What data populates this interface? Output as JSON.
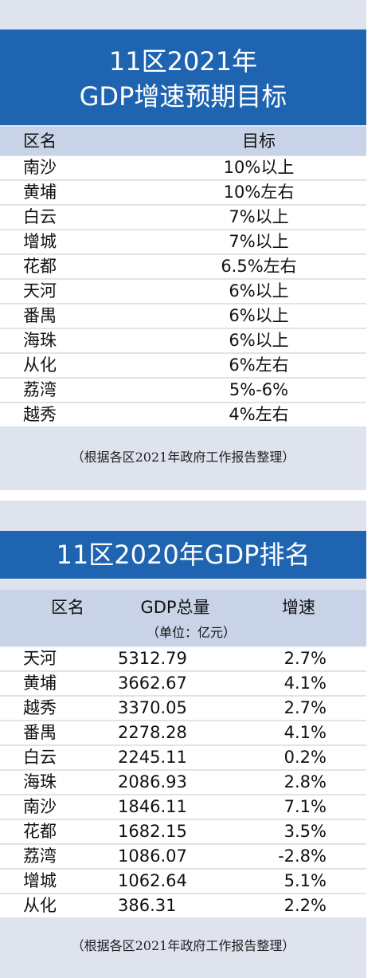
{
  "table1": {
    "title_line1": "11区2021年",
    "title_line2": "GDP增速预期目标",
    "header": {
      "district": "区名",
      "target": "目标"
    },
    "rows": [
      {
        "district": "南沙",
        "target": "10%以上"
      },
      {
        "district": "黄埔",
        "target": "10%左右"
      },
      {
        "district": "白云",
        "target": "7%以上"
      },
      {
        "district": "增城",
        "target": "7%以上"
      },
      {
        "district": "花都",
        "target": "6.5%左右"
      },
      {
        "district": "天河",
        "target": "6%以上"
      },
      {
        "district": "番禺",
        "target": "6%以上"
      },
      {
        "district": "海珠",
        "target": "6%以上"
      },
      {
        "district": "从化",
        "target": "6%左右"
      },
      {
        "district": "荔湾",
        "target": "5%-6%"
      },
      {
        "district": "越秀",
        "target": "4%左右"
      }
    ],
    "note": "（根据各区2021年政府工作报告整理）"
  },
  "table2": {
    "title": "11区2020年GDP排名",
    "header": {
      "district": "区名",
      "gdp": "GDP总量",
      "unit": "（单位：亿元）",
      "growth": "增速"
    },
    "rows": [
      {
        "district": "天河",
        "gdp": "5312.79",
        "growth": "2.7%"
      },
      {
        "district": "黄埔",
        "gdp": "3662.67",
        "growth": "4.1%"
      },
      {
        "district": "越秀",
        "gdp": "3370.05",
        "growth": "2.7%"
      },
      {
        "district": "番禺",
        "gdp": "2278.28",
        "growth": "4.1%"
      },
      {
        "district": "白云",
        "gdp": "2245.11",
        "growth": "0.2%"
      },
      {
        "district": "海珠",
        "gdp": "2086.93",
        "growth": "2.8%"
      },
      {
        "district": "南沙",
        "gdp": "1846.11",
        "growth": "7.1%"
      },
      {
        "district": "花都",
        "gdp": "1682.15",
        "growth": "3.5%"
      },
      {
        "district": "荔湾",
        "gdp": "1086.07",
        "growth": "-2.8%"
      },
      {
        "district": "增城",
        "gdp": "1062.64",
        "growth": "5.1%"
      },
      {
        "district": "从化",
        "gdp": "386.31",
        "growth": "2.2%"
      }
    ],
    "note": "（根据各区2021年政府工作报告整理）"
  }
}
